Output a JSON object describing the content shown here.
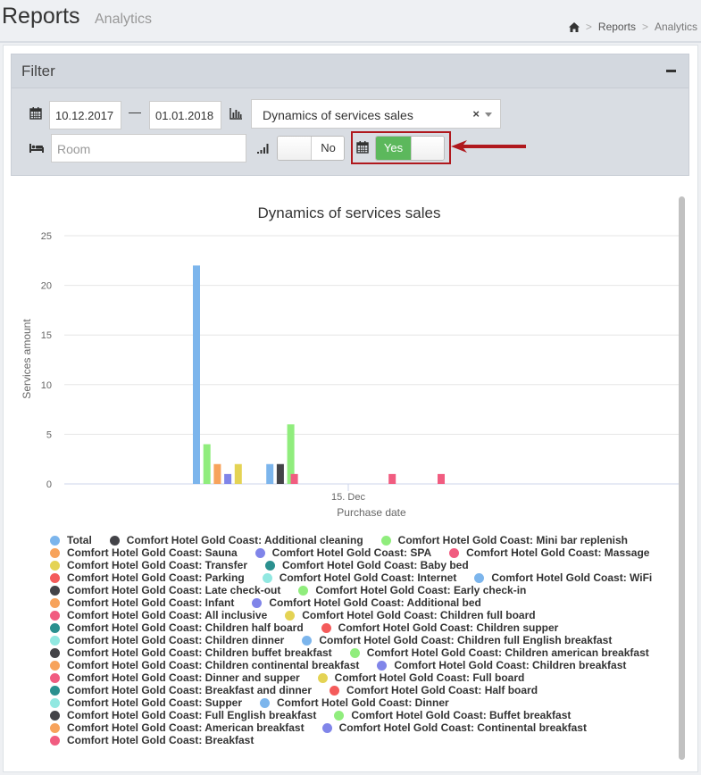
{
  "header": {
    "title": "Reports",
    "subtitle": "Analytics"
  },
  "breadcrumb": {
    "home_icon": "home-icon",
    "items": [
      "Reports",
      "Analytics"
    ]
  },
  "filter": {
    "title": "Filter",
    "collapse_icon": "minus-icon",
    "date_from": "10.12.2017",
    "date_to": "01.01.2018",
    "date_separator": "—",
    "report_type": "Dynamics of services sales",
    "room_placeholder": "Room",
    "toggle_no": {
      "label": "No"
    },
    "toggle_yes": {
      "label": "Yes"
    },
    "icons": {
      "calendar": "calendar-icon",
      "chart": "bar-chart-icon",
      "bed": "bed-icon",
      "signal": "signal-icon"
    },
    "colors": {
      "toggle_on": "#5cb85c",
      "highlight": "#b0181d"
    }
  },
  "chart_data": {
    "type": "bar",
    "title": "Dynamics of services sales",
    "xlabel": "Purchase date",
    "ylabel": "Services amount",
    "ylim": [
      0,
      25
    ],
    "yticks": [
      0,
      5,
      10,
      15,
      20,
      25
    ],
    "xticks": [
      "15. Dec"
    ],
    "bars": [
      {
        "date": "2017-12-10",
        "series": "Total",
        "value": 22,
        "color": "#7cb5ec"
      },
      {
        "date": "2017-12-10",
        "series": "Comfort Hotel Gold Coast: Mini bar replenish",
        "value": 4,
        "color": "#90ed7d"
      },
      {
        "date": "2017-12-10",
        "series": "Comfort Hotel Gold Coast: Sauna",
        "value": 2,
        "color": "#f7a35c"
      },
      {
        "date": "2017-12-10",
        "series": "Comfort Hotel Gold Coast: SPA",
        "value": 1,
        "color": "#8085e9"
      },
      {
        "date": "2017-12-10",
        "series": "Comfort Hotel Gold Coast: Transfer",
        "value": 2,
        "color": "#e4d354"
      },
      {
        "date": "2017-12-13",
        "series": "Total",
        "value": 2,
        "color": "#7cb5ec"
      },
      {
        "date": "2017-12-13",
        "series": "Comfort Hotel Gold Coast: Additional cleaning",
        "value": 2,
        "color": "#434348"
      },
      {
        "date": "2017-12-13",
        "series": "Comfort Hotel Gold Coast: Mini bar replenish",
        "value": 6,
        "color": "#90ed7d"
      },
      {
        "date": "2017-12-14",
        "series": "Comfort Hotel Gold Coast: Massage",
        "value": 1,
        "color": "#f15c80"
      },
      {
        "date": "2017-12-18",
        "series": "Comfort Hotel Gold Coast: Massage",
        "value": 1,
        "color": "#f15c80"
      },
      {
        "date": "2017-12-20",
        "series": "Comfort Hotel Gold Coast: Massage",
        "value": 1,
        "color": "#f15c80"
      }
    ],
    "legend_rows": [
      [
        {
          "name": "Total",
          "color": "#7cb5ec"
        },
        {
          "name": "Comfort Hotel Gold Coast: Additional cleaning",
          "color": "#434348"
        },
        {
          "name": "Comfort Hotel Gold Coast: Mini bar replenish",
          "color": "#90ed7d"
        }
      ],
      [
        {
          "name": "Comfort Hotel Gold Coast: Sauna",
          "color": "#f7a35c"
        },
        {
          "name": "Comfort Hotel Gold Coast: SPA",
          "color": "#8085e9"
        },
        {
          "name": "Comfort Hotel Gold Coast: Massage",
          "color": "#f15c80"
        }
      ],
      [
        {
          "name": "Comfort Hotel Gold Coast: Transfer",
          "color": "#e4d354"
        },
        {
          "name": "Comfort Hotel Gold Coast: Baby bed",
          "color": "#2b908f"
        }
      ],
      [
        {
          "name": "Comfort Hotel Gold Coast: Parking",
          "color": "#f45b5b"
        },
        {
          "name": "Comfort Hotel Gold Coast: Internet",
          "color": "#91e8e1"
        },
        {
          "name": "Comfort Hotel Gold Coast: WiFi",
          "color": "#7cb5ec"
        }
      ],
      [
        {
          "name": "Comfort Hotel Gold Coast: Late check-out",
          "color": "#434348"
        },
        {
          "name": "Comfort Hotel Gold Coast: Early check-in",
          "color": "#90ed7d"
        }
      ],
      [
        {
          "name": "Comfort Hotel Gold Coast: Infant",
          "color": "#f7a35c"
        },
        {
          "name": "Comfort Hotel Gold Coast: Additional bed",
          "color": "#8085e9"
        }
      ],
      [
        {
          "name": "Comfort Hotel Gold Coast: All inclusive",
          "color": "#f15c80"
        },
        {
          "name": "Comfort Hotel Gold Coast: Children full board",
          "color": "#e4d354"
        }
      ],
      [
        {
          "name": "Comfort Hotel Gold Coast: Children half board",
          "color": "#2b908f"
        },
        {
          "name": "Comfort Hotel Gold Coast: Children supper",
          "color": "#f45b5b"
        }
      ],
      [
        {
          "name": "Comfort Hotel Gold Coast: Children dinner",
          "color": "#91e8e1"
        },
        {
          "name": "Comfort Hotel Gold Coast: Children full English breakfast",
          "color": "#7cb5ec"
        }
      ],
      [
        {
          "name": "Comfort Hotel Gold Coast: Children buffet breakfast",
          "color": "#434348"
        },
        {
          "name": "Comfort Hotel Gold Coast: Children american breakfast",
          "color": "#90ed7d"
        }
      ],
      [
        {
          "name": "Comfort Hotel Gold Coast: Children continental breakfast",
          "color": "#f7a35c"
        },
        {
          "name": "Comfort Hotel Gold Coast: Children breakfast",
          "color": "#8085e9"
        }
      ],
      [
        {
          "name": "Comfort Hotel Gold Coast: Dinner and supper",
          "color": "#f15c80"
        },
        {
          "name": "Comfort Hotel Gold Coast: Full board",
          "color": "#e4d354"
        }
      ],
      [
        {
          "name": "Comfort Hotel Gold Coast: Breakfast and dinner",
          "color": "#2b908f"
        },
        {
          "name": "Comfort Hotel Gold Coast: Half board",
          "color": "#f45b5b"
        }
      ],
      [
        {
          "name": "Comfort Hotel Gold Coast: Supper",
          "color": "#91e8e1"
        },
        {
          "name": "Comfort Hotel Gold Coast: Dinner",
          "color": "#7cb5ec"
        }
      ],
      [
        {
          "name": "Comfort Hotel Gold Coast: Full English breakfast",
          "color": "#434348"
        },
        {
          "name": "Comfort Hotel Gold Coast: Buffet breakfast",
          "color": "#90ed7d"
        }
      ],
      [
        {
          "name": "Comfort Hotel Gold Coast: American breakfast",
          "color": "#f7a35c"
        },
        {
          "name": "Comfort Hotel Gold Coast: Continental breakfast",
          "color": "#8085e9"
        }
      ],
      [
        {
          "name": "Comfort Hotel Gold Coast: Breakfast",
          "color": "#f15c80"
        }
      ]
    ]
  }
}
